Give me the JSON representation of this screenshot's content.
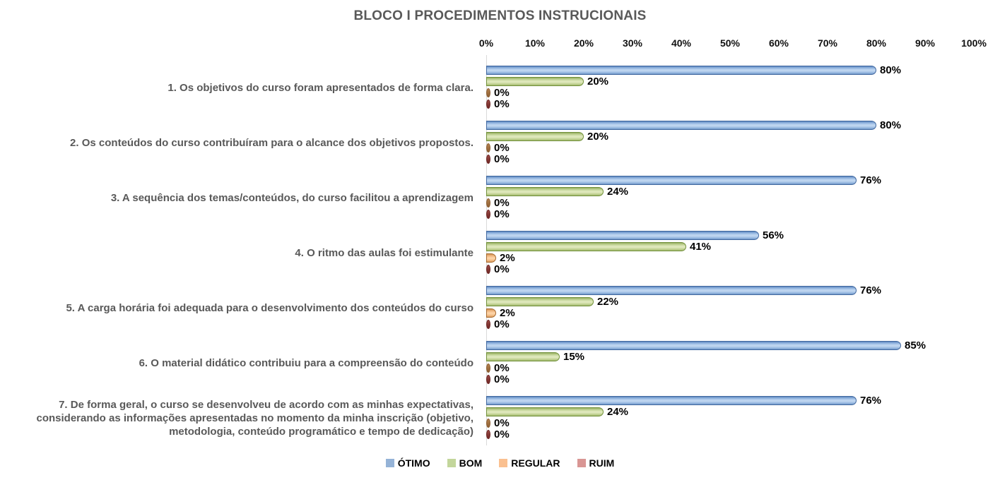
{
  "chart_data": {
    "type": "bar",
    "orientation": "horizontal",
    "title": "BLOCO I PROCEDIMENTOS INSTRUCIONAIS",
    "categories": [
      "1. Os objetivos do curso foram apresentados de forma clara.",
      "2. Os conteúdos do curso contribuíram para o alcance dos objetivos propostos.",
      "3. A sequência dos temas/conteúdos, do curso facilitou a aprendizagem",
      "4. O ritmo das aulas foi estimulante",
      "5. A carga horária foi adequada para o desenvolvimento dos conteúdos do curso",
      "6. O material didático contribuiu para a compreensão do conteúdo",
      "7. De forma geral, o curso se desenvolveu de acordo com as minhas expectativas, considerando as informações apresentadas no momento da minha inscrição (objetivo, metodologia, conteúdo programático e tempo de dedicação)"
    ],
    "series": [
      {
        "name": "ÓTIMO",
        "color": "#95B3D7",
        "border_color": "#41689F",
        "values": [
          80,
          80,
          76,
          56,
          76,
          85,
          76
        ]
      },
      {
        "name": "BOM",
        "color": "#C3D69B",
        "border_color": "#71903A",
        "values": [
          20,
          20,
          24,
          41,
          22,
          15,
          24
        ]
      },
      {
        "name": "REGULAR",
        "color": "#FAC090",
        "border_color": "#A5692E",
        "values": [
          0,
          0,
          0,
          2,
          2,
          0,
          0
        ]
      },
      {
        "name": "RUIM",
        "color": "#D99694",
        "border_color": "#7A302C",
        "values": [
          0,
          0,
          0,
          0,
          0,
          0,
          0
        ]
      }
    ],
    "value_label_suffix": "%",
    "x_axis": {
      "min": 0,
      "max": 100,
      "ticks": [
        "0%",
        "10%",
        "20%",
        "30%",
        "40%",
        "50%",
        "60%",
        "70%",
        "80%",
        "90%",
        "100%"
      ]
    },
    "legend_position": "bottom",
    "grid": false
  },
  "colors": {
    "background": "#FFFFFF",
    "title_text": "#595959",
    "category_text": "#595959",
    "value_text": "#000000",
    "axis_text": "#000000",
    "axis_line": "#D9D9D9"
  }
}
